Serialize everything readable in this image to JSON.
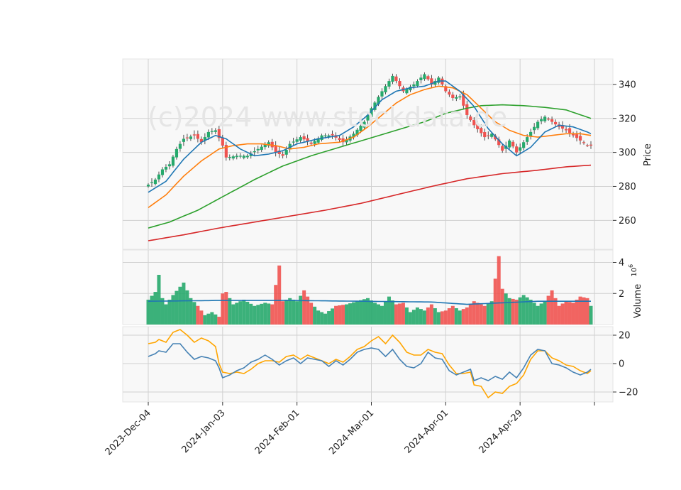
{
  "watermark": "(c)2024 www.stockdata.de",
  "colors": {
    "up": "#26a96c",
    "down": "#ef5350",
    "ma_blue": "#1f77b4",
    "ma_orange": "#ff7f0e",
    "ma_green": "#2ca02c",
    "ma_red": "#d62728",
    "macd": "#4682b4",
    "signal": "#ffa500",
    "panel_bg": "#f8f8f8",
    "grid": "#d0d0d0"
  },
  "chart_data": {
    "type": "candlestick",
    "x_tick_labels": [
      "2023-Dec-04",
      "2024-Jan-03",
      "2024-Feb-01",
      "2024-Mar-01",
      "2024-Apr-01",
      "2024-Apr-29"
    ],
    "x_tick_index": [
      0,
      21,
      42,
      63,
      84,
      105
    ],
    "n_bars": 126,
    "price_panel": {
      "ylabel": "Price",
      "yticks": [
        260,
        280,
        300,
        320,
        340
      ],
      "ylim": [
        243,
        355
      ]
    },
    "volume_panel": {
      "ylabel": "Volume",
      "ylabel_exp": "6",
      "yticks": [
        2,
        4
      ],
      "ylim": [
        0,
        4.8
      ]
    },
    "macd_panel": {
      "yticks": [
        -20,
        0,
        20
      ],
      "ylim": [
        -27,
        26
      ]
    },
    "price_anchors": [
      [
        0,
        281
      ],
      [
        2,
        284
      ],
      [
        4,
        290
      ],
      [
        6,
        293
      ],
      [
        8,
        302
      ],
      [
        10,
        308
      ],
      [
        13,
        310
      ],
      [
        15,
        306
      ],
      [
        17,
        312
      ],
      [
        19,
        313
      ],
      [
        21,
        304
      ],
      [
        22,
        297
      ],
      [
        25,
        298
      ],
      [
        28,
        298
      ],
      [
        31,
        302
      ],
      [
        34,
        306
      ],
      [
        36,
        300
      ],
      [
        38,
        298
      ],
      [
        40,
        305
      ],
      [
        43,
        309
      ],
      [
        46,
        305
      ],
      [
        49,
        310
      ],
      [
        52,
        310
      ],
      [
        55,
        306
      ],
      [
        58,
        311
      ],
      [
        61,
        318
      ],
      [
        63,
        326
      ],
      [
        66,
        336
      ],
      [
        69,
        345
      ],
      [
        72,
        336
      ],
      [
        75,
        340
      ],
      [
        78,
        346
      ],
      [
        80,
        340
      ],
      [
        82,
        344
      ],
      [
        84,
        336
      ],
      [
        86,
        332
      ],
      [
        88,
        333
      ],
      [
        90,
        322
      ],
      [
        92,
        316
      ],
      [
        95,
        309
      ],
      [
        97,
        311
      ],
      [
        100,
        301
      ],
      [
        102,
        307
      ],
      [
        104,
        300
      ],
      [
        106,
        306
      ],
      [
        108,
        312
      ],
      [
        110,
        318
      ],
      [
        112,
        321
      ],
      [
        114,
        318
      ],
      [
        116,
        315
      ],
      [
        118,
        313
      ],
      [
        120,
        310
      ],
      [
        122,
        307
      ],
      [
        124,
        304
      ],
      [
        125,
        304
      ]
    ],
    "volume_anchors": [
      [
        0,
        1.6
      ],
      [
        2,
        2.1
      ],
      [
        3,
        3.2
      ],
      [
        4,
        1.7
      ],
      [
        5,
        1.3
      ],
      [
        7,
        1.9
      ],
      [
        10,
        2.7
      ],
      [
        12,
        1.7
      ],
      [
        14,
        1.2
      ],
      [
        16,
        0.6
      ],
      [
        18,
        0.8
      ],
      [
        20,
        0.5
      ],
      [
        21,
        2.0
      ],
      [
        22,
        2.1
      ],
      [
        24,
        1.3
      ],
      [
        27,
        1.6
      ],
      [
        30,
        1.2
      ],
      [
        33,
        1.4
      ],
      [
        35,
        1.3
      ],
      [
        37,
        3.8
      ],
      [
        38,
        1.5
      ],
      [
        40,
        1.7
      ],
      [
        42,
        1.5
      ],
      [
        44,
        2.2
      ],
      [
        46,
        1.4
      ],
      [
        48,
        0.9
      ],
      [
        50,
        0.7
      ],
      [
        53,
        1.2
      ],
      [
        56,
        1.3
      ],
      [
        59,
        1.5
      ],
      [
        62,
        1.7
      ],
      [
        64,
        1.4
      ],
      [
        66,
        1.2
      ],
      [
        68,
        1.8
      ],
      [
        70,
        1.3
      ],
      [
        72,
        1.4
      ],
      [
        74,
        0.8
      ],
      [
        76,
        1.1
      ],
      [
        78,
        0.9
      ],
      [
        80,
        1.3
      ],
      [
        82,
        0.8
      ],
      [
        84,
        0.9
      ],
      [
        86,
        1.2
      ],
      [
        88,
        0.9
      ],
      [
        90,
        1.1
      ],
      [
        92,
        1.5
      ],
      [
        95,
        1.2
      ],
      [
        97,
        1.5
      ],
      [
        99,
        4.4
      ],
      [
        100,
        2.3
      ],
      [
        102,
        1.7
      ],
      [
        104,
        1.6
      ],
      [
        106,
        1.9
      ],
      [
        108,
        1.6
      ],
      [
        110,
        1.2
      ],
      [
        112,
        1.5
      ],
      [
        114,
        2.2
      ],
      [
        116,
        1.2
      ],
      [
        118,
        1.5
      ],
      [
        120,
        1.4
      ],
      [
        122,
        1.8
      ],
      [
        124,
        1.7
      ],
      [
        125,
        1.2
      ]
    ],
    "ma_anchors": {
      "ma_blue": [
        [
          0,
          276.5
        ],
        [
          5,
          283
        ],
        [
          10,
          296
        ],
        [
          15,
          306
        ],
        [
          19,
          310
        ],
        [
          22,
          308
        ],
        [
          26,
          302
        ],
        [
          30,
          298
        ],
        [
          34,
          299
        ],
        [
          38,
          301
        ],
        [
          42,
          305
        ],
        [
          48,
          308
        ],
        [
          54,
          310
        ],
        [
          58,
          315
        ],
        [
          62,
          322
        ],
        [
          66,
          331
        ],
        [
          70,
          336
        ],
        [
          74,
          338
        ],
        [
          78,
          339
        ],
        [
          82,
          342
        ],
        [
          84,
          342
        ],
        [
          88,
          336
        ],
        [
          92,
          327
        ],
        [
          96,
          314
        ],
        [
          100,
          305
        ],
        [
          104,
          298
        ],
        [
          108,
          303
        ],
        [
          112,
          312
        ],
        [
          116,
          316
        ],
        [
          120,
          315
        ],
        [
          124,
          312
        ],
        [
          125,
          311
        ]
      ],
      "ma_orange": [
        [
          0,
          267.5
        ],
        [
          5,
          275
        ],
        [
          10,
          286
        ],
        [
          15,
          295
        ],
        [
          20,
          302
        ],
        [
          24,
          304
        ],
        [
          28,
          305
        ],
        [
          32,
          305
        ],
        [
          36,
          304
        ],
        [
          40,
          302
        ],
        [
          44,
          303
        ],
        [
          48,
          305
        ],
        [
          54,
          306
        ],
        [
          58,
          309
        ],
        [
          62,
          315
        ],
        [
          66,
          322
        ],
        [
          70,
          329
        ],
        [
          74,
          334
        ],
        [
          78,
          337
        ],
        [
          82,
          339
        ],
        [
          86,
          338
        ],
        [
          90,
          334
        ],
        [
          94,
          326
        ],
        [
          98,
          318
        ],
        [
          102,
          313
        ],
        [
          106,
          310
        ],
        [
          110,
          309
        ],
        [
          114,
          310
        ],
        [
          118,
          311
        ],
        [
          122,
          311
        ],
        [
          125,
          310
        ]
      ],
      "ma_green": [
        [
          0,
          255.5
        ],
        [
          6,
          259
        ],
        [
          14,
          266
        ],
        [
          22,
          275
        ],
        [
          30,
          284
        ],
        [
          38,
          292
        ],
        [
          46,
          298
        ],
        [
          54,
          303
        ],
        [
          62,
          308
        ],
        [
          70,
          313
        ],
        [
          78,
          318
        ],
        [
          84,
          323
        ],
        [
          90,
          326
        ],
        [
          94,
          327.5
        ],
        [
          100,
          328
        ],
        [
          106,
          327.5
        ],
        [
          112,
          326.5
        ],
        [
          118,
          325
        ],
        [
          125,
          320
        ]
      ],
      "ma_red": [
        [
          0,
          248
        ],
        [
          10,
          251.5
        ],
        [
          20,
          255.5
        ],
        [
          30,
          259
        ],
        [
          40,
          262.5
        ],
        [
          50,
          266
        ],
        [
          60,
          270
        ],
        [
          70,
          275
        ],
        [
          80,
          280
        ],
        [
          90,
          284.5
        ],
        [
          100,
          287.5
        ],
        [
          110,
          289.5
        ],
        [
          118,
          291.5
        ],
        [
          125,
          292.5
        ]
      ]
    },
    "vol_ma_anchors": [
      [
        0,
        1.5
      ],
      [
        20,
        1.55
      ],
      [
        40,
        1.55
      ],
      [
        60,
        1.5
      ],
      [
        80,
        1.45
      ],
      [
        90,
        1.3
      ],
      [
        100,
        1.4
      ],
      [
        110,
        1.5
      ],
      [
        125,
        1.5
      ]
    ],
    "macd_anchors": [
      [
        0,
        5
      ],
      [
        2,
        7
      ],
      [
        3,
        9
      ],
      [
        5,
        8
      ],
      [
        7,
        14
      ],
      [
        9,
        14
      ],
      [
        11,
        8
      ],
      [
        13,
        3
      ],
      [
        15,
        5
      ],
      [
        17,
        4
      ],
      [
        19,
        2
      ],
      [
        20,
        -3
      ],
      [
        21,
        -10
      ],
      [
        23,
        -8
      ],
      [
        25,
        -5
      ],
      [
        27,
        -3
      ],
      [
        29,
        1
      ],
      [
        31,
        3
      ],
      [
        33,
        6
      ],
      [
        35,
        3
      ],
      [
        37,
        -1
      ],
      [
        39,
        2
      ],
      [
        41,
        4
      ],
      [
        43,
        0
      ],
      [
        45,
        4
      ],
      [
        47,
        3
      ],
      [
        49,
        2
      ],
      [
        51,
        -2
      ],
      [
        53,
        2
      ],
      [
        55,
        -1
      ],
      [
        57,
        3
      ],
      [
        59,
        8
      ],
      [
        61,
        10
      ],
      [
        63,
        11
      ],
      [
        65,
        10
      ],
      [
        67,
        5
      ],
      [
        69,
        10
      ],
      [
        71,
        3
      ],
      [
        73,
        -2
      ],
      [
        75,
        -3
      ],
      [
        77,
        0
      ],
      [
        79,
        8
      ],
      [
        81,
        4
      ],
      [
        83,
        3
      ],
      [
        85,
        -5
      ],
      [
        87,
        -8
      ],
      [
        89,
        -6
      ],
      [
        91,
        -4
      ],
      [
        92,
        -12
      ],
      [
        94,
        -10
      ],
      [
        96,
        -12
      ],
      [
        98,
        -9
      ],
      [
        100,
        -11
      ],
      [
        102,
        -6
      ],
      [
        104,
        -10
      ],
      [
        106,
        -3
      ],
      [
        108,
        6
      ],
      [
        110,
        10
      ],
      [
        112,
        9
      ],
      [
        114,
        0
      ],
      [
        116,
        -1
      ],
      [
        118,
        -3
      ],
      [
        120,
        -6
      ],
      [
        122,
        -8
      ],
      [
        124,
        -6
      ],
      [
        125,
        -4
      ]
    ],
    "signal_anchors": [
      [
        0,
        14
      ],
      [
        2,
        15
      ],
      [
        3,
        17
      ],
      [
        5,
        15
      ],
      [
        7,
        22
      ],
      [
        9,
        24
      ],
      [
        11,
        20
      ],
      [
        13,
        15
      ],
      [
        15,
        18
      ],
      [
        17,
        16
      ],
      [
        19,
        12
      ],
      [
        20,
        0
      ],
      [
        21,
        -6
      ],
      [
        23,
        -7
      ],
      [
        25,
        -6
      ],
      [
        27,
        -7
      ],
      [
        29,
        -4
      ],
      [
        31,
        0
      ],
      [
        33,
        2
      ],
      [
        35,
        2
      ],
      [
        37,
        1
      ],
      [
        39,
        5
      ],
      [
        41,
        6
      ],
      [
        43,
        3
      ],
      [
        45,
        6
      ],
      [
        47,
        4
      ],
      [
        49,
        2
      ],
      [
        51,
        0
      ],
      [
        53,
        3
      ],
      [
        55,
        1
      ],
      [
        57,
        5
      ],
      [
        59,
        10
      ],
      [
        61,
        12
      ],
      [
        63,
        16
      ],
      [
        65,
        19
      ],
      [
        67,
        14
      ],
      [
        69,
        20
      ],
      [
        71,
        15
      ],
      [
        73,
        8
      ],
      [
        75,
        6
      ],
      [
        77,
        6
      ],
      [
        79,
        10
      ],
      [
        81,
        8
      ],
      [
        83,
        7
      ],
      [
        85,
        -1
      ],
      [
        87,
        -7
      ],
      [
        89,
        -7
      ],
      [
        91,
        -6
      ],
      [
        92,
        -15
      ],
      [
        94,
        -16
      ],
      [
        96,
        -24
      ],
      [
        98,
        -20
      ],
      [
        100,
        -21
      ],
      [
        102,
        -16
      ],
      [
        104,
        -14
      ],
      [
        106,
        -8
      ],
      [
        108,
        3
      ],
      [
        110,
        9
      ],
      [
        112,
        9
      ],
      [
        114,
        4
      ],
      [
        116,
        2
      ],
      [
        118,
        -1
      ],
      [
        120,
        -2
      ],
      [
        122,
        -5
      ],
      [
        124,
        -7
      ],
      [
        125,
        -5
      ]
    ]
  }
}
